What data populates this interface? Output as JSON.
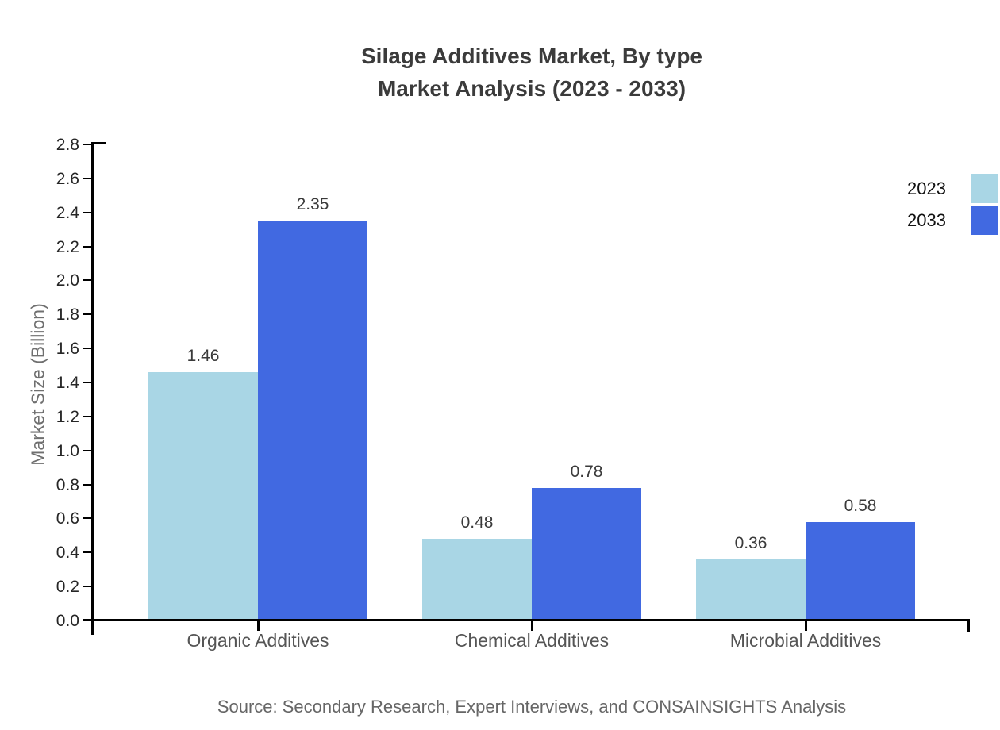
{
  "title": {
    "line1": "Silage Additives Market, By type",
    "line2": "Market Analysis (2023 - 2033)"
  },
  "source": "Source: Secondary Research, Expert Interviews, and CONSAINSIGHTS Analysis",
  "chart_data": {
    "type": "bar",
    "title": "Silage Additives Market, By type Market Analysis (2023 - 2033)",
    "categories": [
      "Organic Additives",
      "Chemical Additives",
      "Microbial Additives"
    ],
    "series": [
      {
        "name": "2023",
        "color": "#a9d6e5",
        "values": [
          1.46,
          0.48,
          0.36
        ]
      },
      {
        "name": "2033",
        "color": "#4169e1",
        "values": [
          2.35,
          0.78,
          0.58
        ]
      }
    ],
    "xlabel": "",
    "ylabel": "Market Size (Billion)",
    "ylim": [
      0,
      2.8
    ],
    "yticks": [
      "0.0",
      "0.2",
      "0.4",
      "0.6",
      "0.8",
      "1.0",
      "1.2",
      "1.4",
      "1.6",
      "1.8",
      "2.0",
      "2.2",
      "2.4",
      "2.6",
      "2.8"
    ],
    "grid": false,
    "legend_position": "top-right",
    "value_labels": [
      "1.46",
      "2.35",
      "0.48",
      "0.78",
      "0.36",
      "0.58"
    ],
    "value_label_format": "0.00"
  }
}
